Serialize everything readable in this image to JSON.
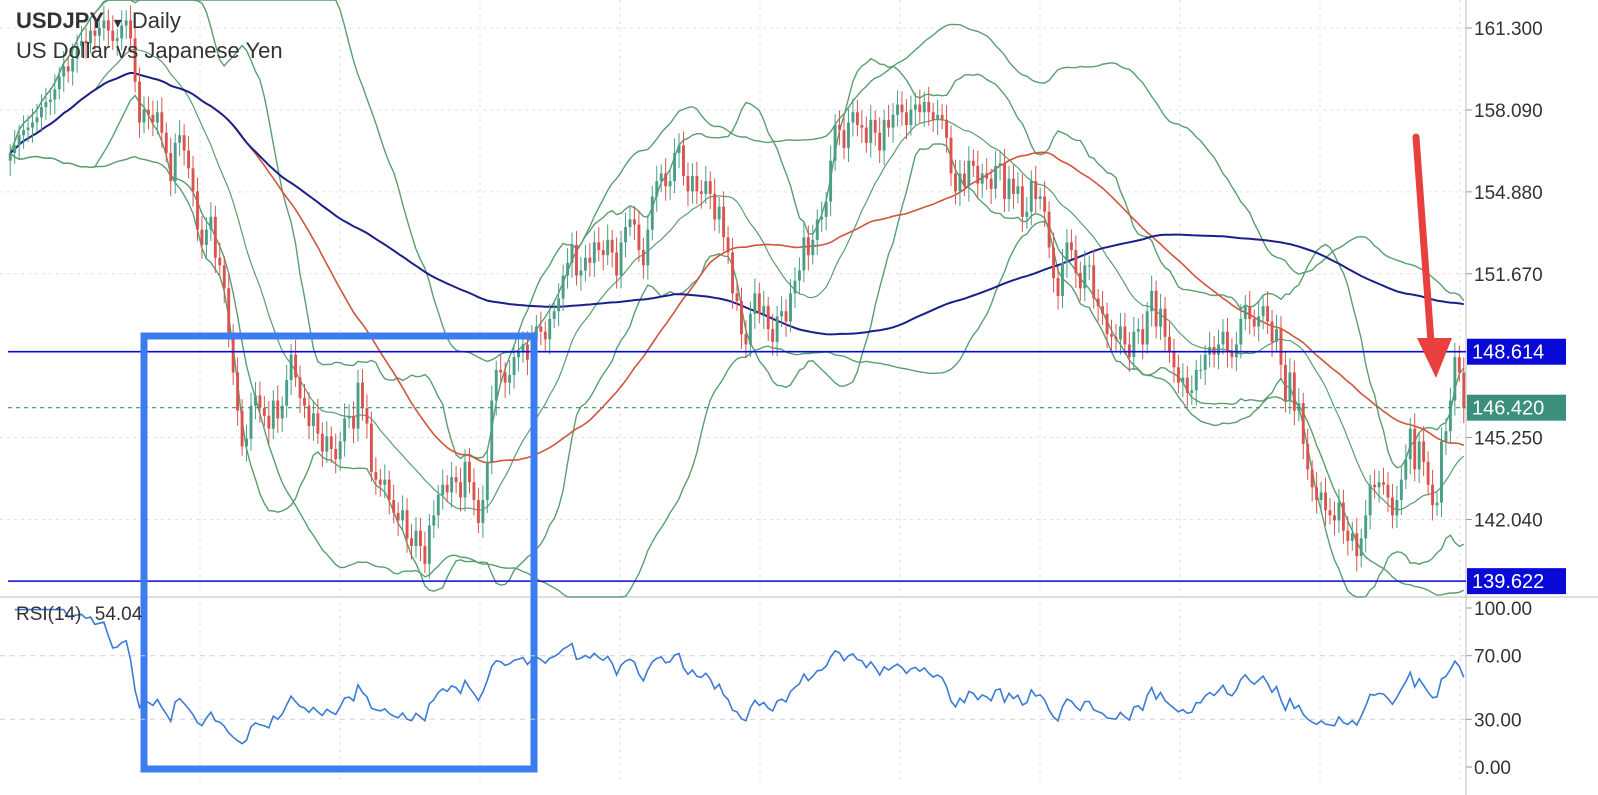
{
  "header": {
    "symbol": "USDJPY",
    "dropdown_glyph": "▾",
    "timeframe": "Daily",
    "description": "US Dollar vs Japanese Yen"
  },
  "rsi": {
    "label": "RSI(14)",
    "value": "54.04",
    "ticks": [
      100,
      70,
      30,
      0
    ],
    "tick_labels": [
      "100.00",
      "70.00",
      "30.00",
      "0.00"
    ],
    "color": "#3a7bd5"
  },
  "price_axis": {
    "ticks": [
      161.3,
      158.09,
      154.88,
      151.67,
      145.25,
      142.04
    ],
    "tick_labels": [
      "161.300",
      "158.090",
      "154.880",
      "151.670",
      "145.250",
      "142.040"
    ]
  },
  "levels": [
    {
      "value": 148.614,
      "label": "148.614",
      "color": "#0a0ad8",
      "style": "solid-navy"
    },
    {
      "value": 139.622,
      "label": "139.622",
      "color": "#0a0ad8",
      "style": "solid-navy"
    },
    {
      "value": 146.42,
      "label": "146.420",
      "color": "#3c8f7c",
      "style": "dashed-current"
    }
  ],
  "annotations": {
    "box_color": "#3b7cf0",
    "arrow_color": "#e8403f"
  },
  "colors": {
    "up": "#4a9e86",
    "down": "#d9534f",
    "bollinger": "#5a9e6e",
    "ma_fast": "#d0553a",
    "ma_slow": "#1b1f8a",
    "grid": "#e2e2e2"
  },
  "chart_data": [
    {
      "type": "candlestick",
      "title": "USDJPY Daily",
      "ylim": [
        139.0,
        162.4
      ],
      "close": [
        156.4,
        156.7,
        157.1,
        157.3,
        157.4,
        157.6,
        157.8,
        158.2,
        158.4,
        158.5,
        158.9,
        159.4,
        159.8,
        159.6,
        160.1,
        160.6,
        160.8,
        160.7,
        161.2,
        161.0,
        161.3,
        161.6,
        161.2,
        160.8,
        160.9,
        161.4,
        161.6,
        160.9,
        159.2,
        157.6,
        158.1,
        157.9,
        157.6,
        158.0,
        157.2,
        156.4,
        155.3,
        156.8,
        157.1,
        156.5,
        155.8,
        154.9,
        153.4,
        152.8,
        153.4,
        153.9,
        152.3,
        152.0,
        151.1,
        149.3,
        147.8,
        146.3,
        144.9,
        145.2,
        146.5,
        146.9,
        146.4,
        146.1,
        145.6,
        146.7,
        146.0,
        146.5,
        147.5,
        148.5,
        147.6,
        146.8,
        146.5,
        145.7,
        146.2,
        145.4,
        144.7,
        145.3,
        144.8,
        144.4,
        145.1,
        146.0,
        146.1,
        145.6,
        147.4,
        146.4,
        145.8,
        143.9,
        143.6,
        143.4,
        143.6,
        142.8,
        142.3,
        142.0,
        142.4,
        141.3,
        141.0,
        141.6,
        141.0,
        140.3,
        141.8,
        142.2,
        143.0,
        143.4,
        143.1,
        143.7,
        143.5,
        142.9,
        144.3,
        143.5,
        142.8,
        141.9,
        142.8,
        144.3,
        146.7,
        147.9,
        147.8,
        147.4,
        147.7,
        148.4,
        148.6,
        148.9,
        148.3,
        149.1,
        149.6,
        149.4,
        149.1,
        149.9,
        150.2,
        150.7,
        151.6,
        152.1,
        152.8,
        151.6,
        151.8,
        152.3,
        152.1,
        152.9,
        152.6,
        152.4,
        153.0,
        152.5,
        151.6,
        152.9,
        153.5,
        153.8,
        153.6,
        152.6,
        152.0,
        153.4,
        154.7,
        155.3,
        155.6,
        155.1,
        155.3,
        156.4,
        156.7,
        155.5,
        154.9,
        155.5,
        154.9,
        154.8,
        155.3,
        154.8,
        153.8,
        154.3,
        153.1,
        152.5,
        150.9,
        150.6,
        149.3,
        148.9,
        150.1,
        150.9,
        150.1,
        150.4,
        149.5,
        149.0,
        150.0,
        150.2,
        149.8,
        150.9,
        151.4,
        151.8,
        153.1,
        152.4,
        153.0,
        153.8,
        153.9,
        154.5,
        156.1,
        157.5,
        157.3,
        156.6,
        157.6,
        158.0,
        157.5,
        157.4,
        156.8,
        157.7,
        157.2,
        156.5,
        157.7,
        157.4,
        157.9,
        158.3,
        158.0,
        157.5,
        158.1,
        158.3,
        158.0,
        158.4,
        158.0,
        157.7,
        157.9,
        157.7,
        157.0,
        155.6,
        154.9,
        155.6,
        155.1,
        156.1,
        155.9,
        155.2,
        155.6,
        155.4,
        155.0,
        155.9,
        156.0,
        154.6,
        155.4,
        154.8,
        155.1,
        153.9,
        154.1,
        155.3,
        154.6,
        154.7,
        154.1,
        152.7,
        151.5,
        150.8,
        152.1,
        152.9,
        152.6,
        151.7,
        151.1,
        152.0,
        152.0,
        150.7,
        150.4,
        150.1,
        149.3,
        149.2,
        149.1,
        149.6,
        148.9,
        148.4,
        149.4,
        149.5,
        148.9,
        150.2,
        151.0,
        149.6,
        150.3,
        149.2,
        148.6,
        148.0,
        147.4,
        147.6,
        147.0,
        147.1,
        147.9,
        147.9,
        148.5,
        148.8,
        148.5,
        148.9,
        149.4,
        148.6,
        148.4,
        148.9,
        149.9,
        150.4,
        149.9,
        149.6,
        150.0,
        150.4,
        149.8,
        149.0,
        149.5,
        148.1,
        146.7,
        147.8,
        146.3,
        146.6,
        145.0,
        144.0,
        143.3,
        142.8,
        143.1,
        142.4,
        142.2,
        142.0,
        142.7,
        141.6,
        141.2,
        141.5,
        140.6,
        141.3,
        142.2,
        143.4,
        143.3,
        143.5,
        143.4,
        142.9,
        142.2,
        142.8,
        143.6,
        144.4,
        145.6,
        144.0,
        145.1,
        144.3,
        143.4,
        142.6,
        142.7,
        145.1,
        145.5,
        146.7,
        148.4,
        147.8,
        146.4
      ],
      "indicators": [
        "Bollinger Bands (upper/mid/lower)",
        "Moving average (red)",
        "Moving average (navy)"
      ]
    },
    {
      "type": "line",
      "name": "RSI(14)",
      "ylim": [
        0,
        100
      ],
      "values": []
    }
  ]
}
